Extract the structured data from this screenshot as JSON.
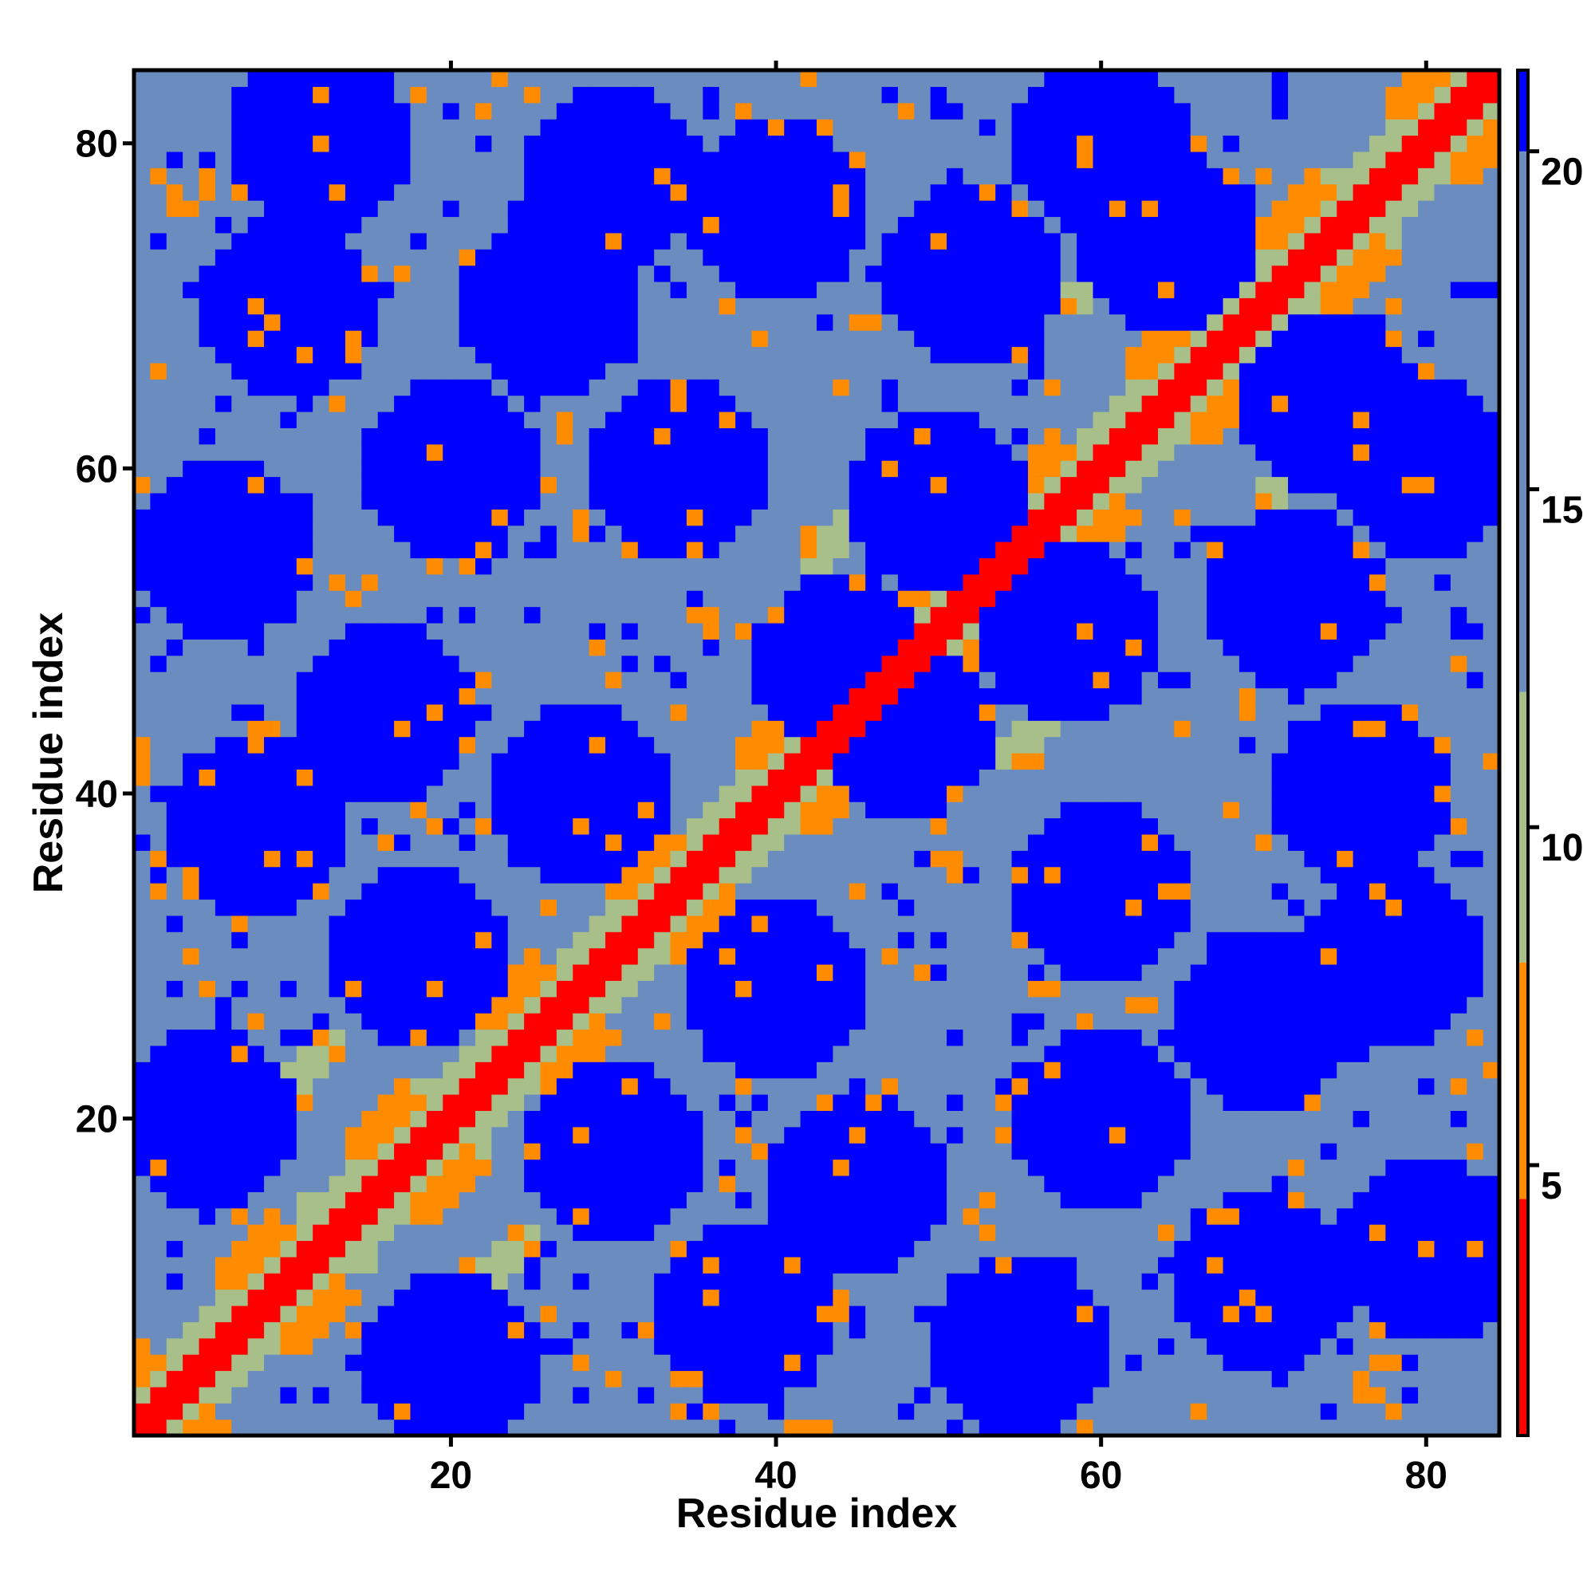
{
  "chart_data": {
    "type": "heatmap",
    "title": "",
    "xlabel": "Residue index",
    "ylabel": "Residue index",
    "n_residues": 84,
    "x_range": [
      1,
      84
    ],
    "y_range": [
      1,
      84
    ],
    "x_ticks": [
      20,
      40,
      60,
      80
    ],
    "y_ticks": [
      20,
      40,
      60,
      80
    ],
    "colorbar": {
      "range": [
        1,
        21
      ],
      "ticks": [
        5,
        10,
        15,
        20
      ],
      "bands": [
        {
          "from": 1,
          "to": 4.5,
          "color": "#ff0000"
        },
        {
          "from": 4.5,
          "to": 8,
          "color": "#ff8c00"
        },
        {
          "from": 8,
          "to": 12,
          "color": "#a8bf8a"
        },
        {
          "from": 12,
          "to": 21,
          "color": "#6a8cbf"
        },
        {
          "from": 21,
          "to": 21.2,
          "color": "#0000ff"
        }
      ]
    },
    "regions": {
      "diagonal": {
        "half_width": 1.3,
        "value": 2
      },
      "secondary_bands": [
        {
          "offset": 4,
          "value": 6,
          "spacing": 16
        },
        {
          "offset": 12,
          "value": 6,
          "spacing": 16
        }
      ],
      "blobs": [
        [
          5,
          20
        ],
        [
          20,
          5
        ],
        [
          16,
          45
        ],
        [
          45,
          16
        ],
        [
          18,
          30
        ],
        [
          30,
          18
        ],
        [
          6,
          55
        ],
        [
          55,
          6
        ],
        [
          20,
          60
        ],
        [
          60,
          20
        ],
        [
          38,
          8
        ],
        [
          8,
          38
        ],
        [
          40,
          28
        ],
        [
          28,
          40
        ],
        [
          58,
          50
        ],
        [
          50,
          58
        ],
        [
          60,
          34
        ],
        [
          34,
          60
        ],
        [
          70,
          10
        ],
        [
          10,
          70
        ],
        [
          72,
          52
        ],
        [
          52,
          72
        ],
        [
          78,
          30
        ],
        [
          30,
          78
        ],
        [
          80,
          60
        ],
        [
          60,
          80
        ],
        [
          12,
          80
        ],
        [
          80,
          12
        ],
        [
          44,
          48
        ],
        [
          48,
          44
        ],
        [
          64,
          74
        ],
        [
          74,
          64
        ],
        [
          26,
          70
        ],
        [
          70,
          26
        ],
        [
          40,
          76
        ],
        [
          76,
          40
        ]
      ],
      "far_field_value": 21
    }
  }
}
